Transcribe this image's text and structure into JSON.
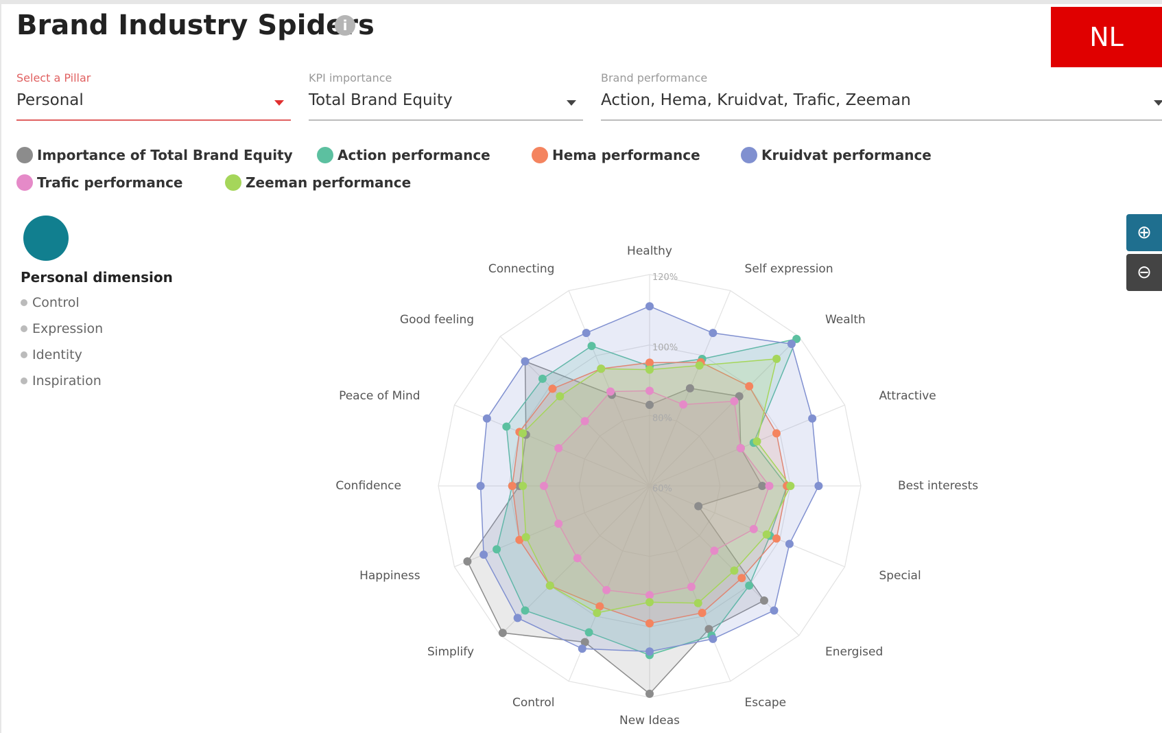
{
  "header": {
    "title": "Brand Industry Spiders",
    "badge": "NL"
  },
  "filters": [
    {
      "label": "Select a Pillar",
      "value": "Personal"
    },
    {
      "label": "KPI importance",
      "value": "Total Brand Equity"
    },
    {
      "label": "Brand performance",
      "value": "Action, Hema, Kruidvat, Trafic, Zeeman"
    }
  ],
  "sidebar": {
    "title": "Personal dimension",
    "items": [
      "Control",
      "Expression",
      "Identity",
      "Inspiration"
    ]
  },
  "chart_data": {
    "type": "radar",
    "categories": [
      "Healthy",
      "Self expression",
      "Wealth",
      "Attractive",
      "Best interests",
      "Special",
      "Energised",
      "Escape",
      "New Ideas",
      "Control",
      "Simplify",
      "Happiness",
      "Confidence",
      "Peace of Mind",
      "Good feeling",
      "Connecting"
    ],
    "rlim": [
      60,
      120
    ],
    "rticks": [
      {
        "value": 60,
        "label": "60%"
      },
      {
        "value": 80,
        "label": "80%"
      },
      {
        "value": 100,
        "label": "100%"
      },
      {
        "value": 120,
        "label": "120%"
      }
    ],
    "series": [
      {
        "name": "Importance of Total Brand Equity",
        "color": "#8c8c8c",
        "values": [
          83,
          90,
          96,
          88,
          92,
          75,
          106,
          104,
          119,
          108,
          119,
          116,
          97,
          98,
          110,
          88
        ]
      },
      {
        "name": "Action performance",
        "color": "#5cc0a0",
        "values": [
          94,
          99,
          119,
          92,
          99,
          97,
          100,
          106,
          108,
          105,
          110,
          107,
          99,
          104,
          103,
          103
        ]
      },
      {
        "name": "Hema performance",
        "color": "#f4845f",
        "values": [
          95,
          98,
          100,
          99,
          99,
          99,
          97,
          99,
          99,
          97,
          100,
          100,
          99,
          100,
          99,
          96
        ]
      },
      {
        "name": "Kruidvat performance",
        "color": "#8090d0",
        "values": [
          111,
          107,
          117,
          110,
          108,
          103,
          110,
          107,
          107,
          110,
          113,
          111,
          108,
          110,
          110,
          107
        ]
      },
      {
        "name": "Trafic performance",
        "color": "#e58ac8",
        "values": [
          87,
          85,
          94,
          88,
          94,
          92,
          86,
          91,
          91,
          92,
          89,
          88,
          90,
          88,
          86,
          89
        ]
      },
      {
        "name": "Zeeman performance",
        "color": "#a5d65a",
        "values": [
          93,
          97,
          111,
          93,
          100,
          96,
          94,
          96,
          93,
          99,
          100,
          98,
          96,
          99,
          96,
          96
        ]
      }
    ]
  }
}
